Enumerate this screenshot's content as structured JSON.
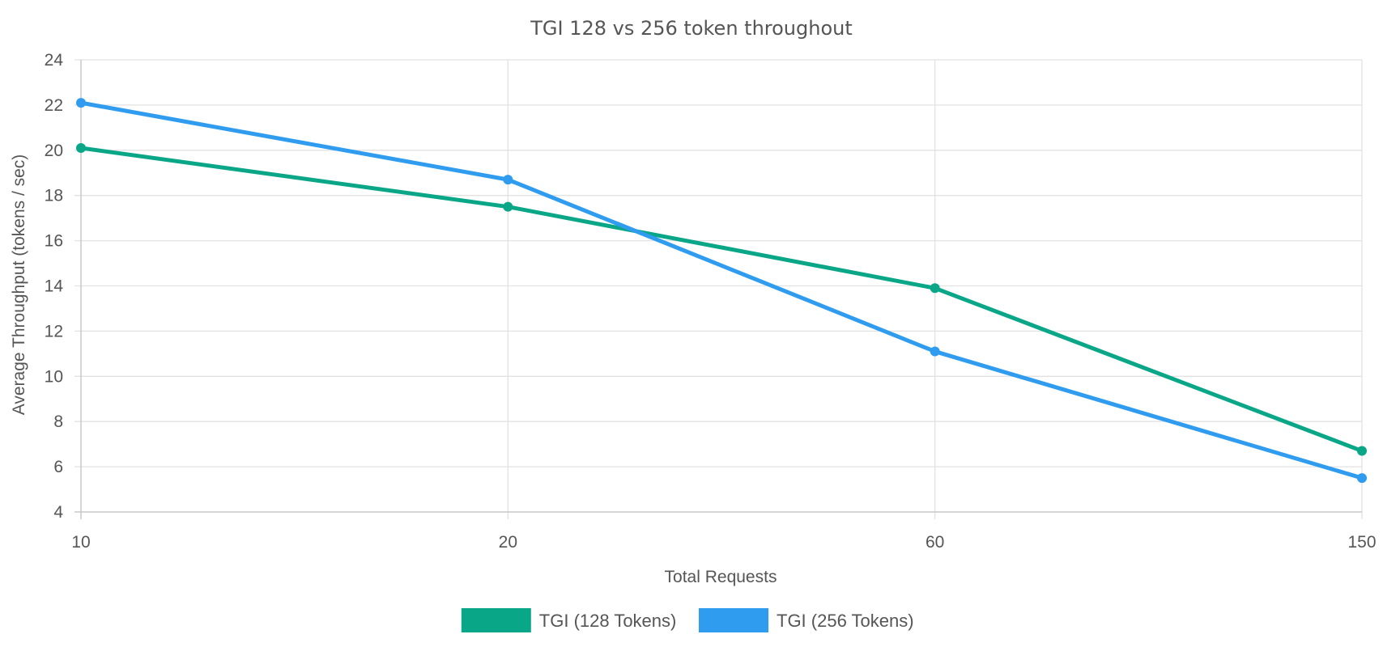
{
  "chart_data": {
    "type": "line",
    "title": "TGI 128 vs 256 token throughout",
    "xlabel": "Total Requests",
    "ylabel": "Average Throughput (tokens / sec)",
    "categories": [
      "10",
      "20",
      "60",
      "150"
    ],
    "ylim": [
      4,
      24
    ],
    "yticks": [
      "24",
      "22",
      "20",
      "18",
      "16",
      "14",
      "12",
      "10",
      "8",
      "6",
      "4"
    ],
    "grid": true,
    "legend_position": "bottom",
    "series": [
      {
        "name": "TGI (128 Tokens)",
        "color": "#0aa688",
        "values": [
          20.1,
          17.5,
          13.9,
          6.7
        ]
      },
      {
        "name": "TGI (256 Tokens)",
        "color": "#2f9cf0",
        "values": [
          22.1,
          18.7,
          11.1,
          5.5
        ]
      }
    ]
  }
}
